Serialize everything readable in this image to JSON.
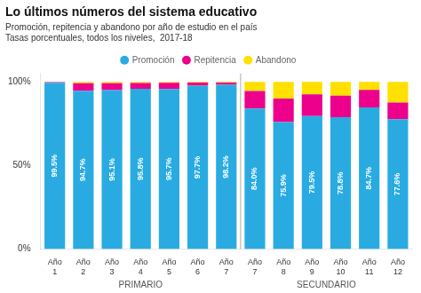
{
  "chart_data": {
    "type": "bar",
    "stacked": true,
    "title": "Lo últimos números del sistema educativo",
    "subtitle": [
      "Promoción, repitencia y abandono por año de estudio en el país",
      "Tasas porcentuales, todos los niveles,  2017-18"
    ],
    "categories": [
      "Año\n1",
      "Año\n2",
      "Año\n3",
      "Año\n4",
      "Año\n5",
      "Año\n6",
      "Año\n7",
      "Año\n7",
      "Año\n8",
      "Año\n9",
      "Año\n10",
      "Año\n11",
      "Año\n12"
    ],
    "series": [
      {
        "name": "Promoción",
        "color": "#29ABE2",
        "values": [
          99.5,
          94.7,
          95.1,
          95.8,
          95.7,
          97.7,
          98.2,
          84.0,
          75.9,
          79.5,
          78.8,
          84.7,
          77.6
        ],
        "data_labels": true,
        "value_labels": [
          "99.5%",
          "94.7%",
          "95.1%",
          "95.8%",
          "95.7%",
          "97.7%",
          "98.2%",
          "84.0%",
          "75.9%",
          "79.5%",
          "78.8%",
          "84.7%",
          "77.6%"
        ]
      },
      {
        "name": "Repitencia",
        "color": "#EC008C",
        "values": [
          0.4,
          4.5,
          4.1,
          3.5,
          3.7,
          1.9,
          1.4,
          10.5,
          14.1,
          13.0,
          13.0,
          10.5,
          10.0
        ]
      },
      {
        "name": "Abandono",
        "color": "#FFE000",
        "values": [
          0.1,
          0.8,
          0.8,
          0.7,
          0.6,
          0.4,
          0.4,
          5.5,
          10.0,
          7.5,
          8.2,
          4.8,
          12.4
        ]
      }
    ],
    "annotations": [
      {
        "text": "PRIMARIO",
        "first": 0,
        "last": 6
      },
      {
        "text": "SECUNDARIO",
        "first": 7,
        "last": 12
      }
    ],
    "ylim": [
      0,
      105
    ],
    "yticks": [
      {
        "value": 0,
        "label": "0%"
      },
      {
        "value": 50,
        "label": "50%"
      },
      {
        "value": 100,
        "label": "100%"
      }
    ],
    "grid": false,
    "legend": "top"
  }
}
